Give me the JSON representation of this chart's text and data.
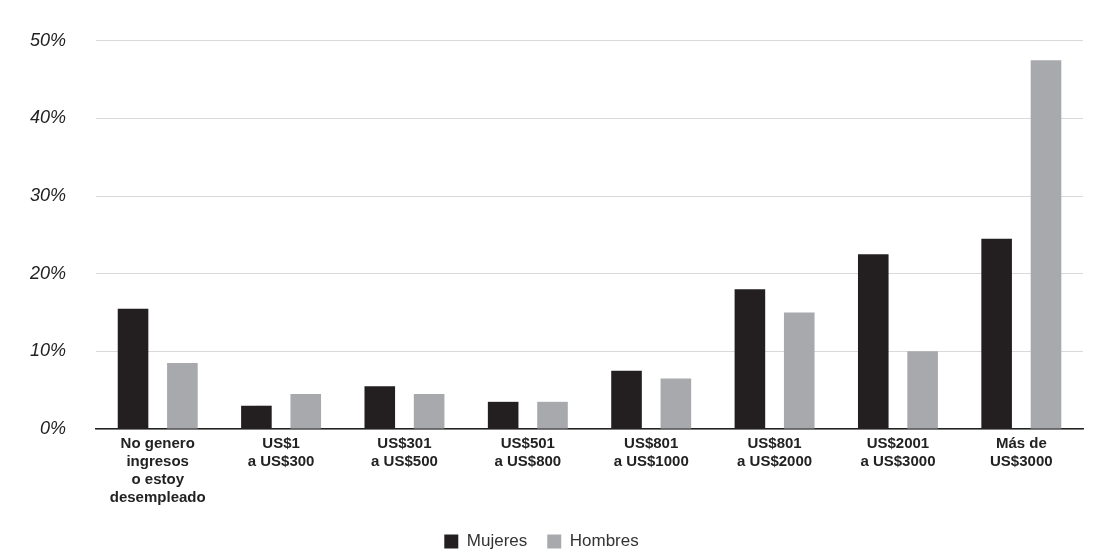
{
  "chart_data": {
    "type": "bar",
    "categories": [
      "No genero\ningresos\no estoy\ndesempleado",
      "US$1\na US$300",
      "US$301\na US$500",
      "US$501\na US$800",
      "US$801\na US$1000",
      "US$801\na US$2000",
      "US$2001\na US$3000",
      "Más de\nUS$3000"
    ],
    "series": [
      {
        "name": "Mujeres",
        "color": "#231f20",
        "values": [
          15.5,
          3,
          5.5,
          3.5,
          7.5,
          18,
          22.5,
          24.5
        ]
      },
      {
        "name": "Hombres",
        "color": "#a7a9ac",
        "values": [
          8.5,
          4.5,
          4.5,
          3.5,
          6.5,
          15,
          10,
          47.5
        ]
      }
    ],
    "ylim": [
      0,
      50
    ],
    "yticks": [
      {
        "value": 0,
        "label": "0%"
      },
      {
        "value": 10,
        "label": "10%"
      },
      {
        "value": 20,
        "label": "20%"
      },
      {
        "value": 30,
        "label": "30%"
      },
      {
        "value": 40,
        "label": "40%"
      },
      {
        "value": 50,
        "label": "50%"
      }
    ],
    "grid": "y",
    "legend": "bottom"
  }
}
